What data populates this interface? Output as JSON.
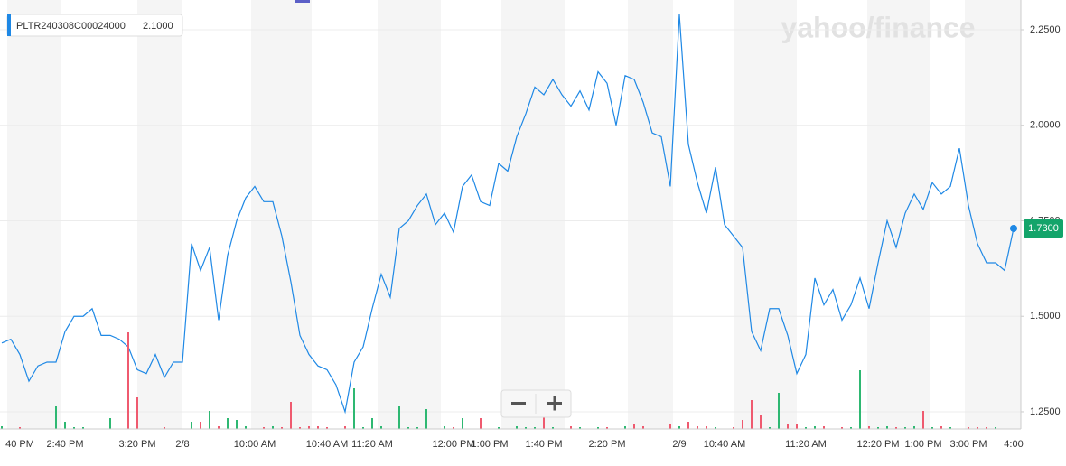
{
  "chart_data": {
    "type": "line",
    "logo": "yahoo/finance",
    "tooltip": {
      "symbol": "PLTR240308C00024000",
      "price": {
        "value": 2.1,
        "label": "2.1000"
      }
    },
    "current_price": {
      "value": 1.73,
      "label": "1.7300"
    },
    "categories": [
      null,
      null,
      "40 PM",
      null,
      null,
      null,
      null,
      "2:40 PM",
      null,
      null,
      null,
      null,
      null,
      null,
      null,
      "3:20 PM",
      null,
      null,
      null,
      null,
      "2/8",
      null,
      null,
      null,
      null,
      null,
      null,
      null,
      "10:00 AM",
      null,
      null,
      null,
      null,
      null,
      null,
      null,
      "10:40 AM",
      null,
      null,
      null,
      null,
      "11:20 AM",
      null,
      null,
      null,
      null,
      null,
      null,
      null,
      null,
      "12:00 PM",
      null,
      null,
      null,
      "1:00 PM",
      null,
      null,
      null,
      null,
      null,
      "1:40 PM",
      null,
      null,
      null,
      null,
      null,
      null,
      "2:20 PM",
      null,
      null,
      null,
      null,
      null,
      null,
      null,
      "2/9",
      null,
      null,
      null,
      null,
      "10:40 AM",
      null,
      null,
      null,
      null,
      null,
      null,
      null,
      null,
      "11:20 AM",
      null,
      null,
      null,
      null,
      null,
      null,
      null,
      "12:20 PM",
      null,
      null,
      null,
      null,
      "1:00 PM",
      null,
      null,
      null,
      null,
      "3:00 PM",
      null,
      null,
      null,
      null,
      "4:00"
    ],
    "series": [
      {
        "color": "#1e88e5",
        "values": [
          1.43,
          1.44,
          1.4,
          1.33,
          1.37,
          1.38,
          1.38,
          1.46,
          1.5,
          1.5,
          1.52,
          1.45,
          1.45,
          1.44,
          1.42,
          1.36,
          1.35,
          1.4,
          1.34,
          1.38,
          1.38,
          1.69,
          1.62,
          1.68,
          1.49,
          1.66,
          1.75,
          1.81,
          1.84,
          1.8,
          1.8,
          1.71,
          1.59,
          1.45,
          1.4,
          1.37,
          1.36,
          1.32,
          1.25,
          1.38,
          1.42,
          1.52,
          1.61,
          1.55,
          1.73,
          1.75,
          1.79,
          1.82,
          1.74,
          1.77,
          1.72,
          1.84,
          1.87,
          1.8,
          1.79,
          1.9,
          1.88,
          1.97,
          2.03,
          2.1,
          2.08,
          2.12,
          2.08,
          2.05,
          2.09,
          2.04,
          2.14,
          2.11,
          2.0,
          2.13,
          2.12,
          2.06,
          1.98,
          1.97,
          1.84,
          2.29,
          1.95,
          1.85,
          1.77,
          1.89,
          1.74,
          1.71,
          1.68,
          1.46,
          1.41,
          1.52,
          1.52,
          1.45,
          1.35,
          1.4,
          1.6,
          1.53,
          1.57,
          1.49,
          1.53,
          1.6,
          1.52,
          1.64,
          1.75,
          1.68,
          1.77,
          1.82,
          1.78,
          1.85,
          1.82,
          1.84,
          1.94,
          1.79,
          1.69,
          1.64,
          1.64,
          1.62,
          1.73
        ]
      },
      {
        "type": "bar",
        "axis": "y2",
        "up_color": "#2eb872",
        "down_color": "#ef5a6f",
        "values": [
          3,
          0,
          2,
          0,
          0,
          0,
          25,
          8,
          2,
          2,
          0,
          0,
          12,
          0,
          107,
          35,
          0,
          0,
          2,
          0,
          0,
          8,
          8,
          20,
          3,
          12,
          10,
          3,
          0,
          2,
          3,
          2,
          30,
          2,
          3,
          3,
          2,
          0,
          3,
          45,
          2,
          12,
          3,
          0,
          25,
          2,
          2,
          22,
          0,
          3,
          2,
          12,
          0,
          12,
          0,
          2,
          0,
          3,
          2,
          2,
          20,
          2,
          0,
          3,
          2,
          0,
          2,
          2,
          0,
          3,
          5,
          3,
          0,
          0,
          5,
          3,
          8,
          3,
          3,
          2,
          0,
          2,
          10,
          32,
          15,
          2,
          40,
          5,
          5,
          2,
          3,
          3,
          0,
          2,
          2,
          65,
          3,
          2,
          3,
          2,
          2,
          3,
          20,
          2,
          3,
          2,
          0,
          2,
          2,
          2,
          2,
          0,
          0
        ]
      }
    ],
    "ylim": [
      1.205,
      2.328
    ],
    "yticks": [
      {
        "value": 1.25,
        "label": "1.2500"
      },
      {
        "value": 1.5,
        "label": "1.5000"
      },
      {
        "value": 1.75,
        "label": "1.7500"
      },
      {
        "value": 2.0,
        "label": "2.0000"
      },
      {
        "value": 2.25,
        "label": "2.2500"
      }
    ],
    "y2lim": [
      0,
      475
    ],
    "grid": true
  }
}
